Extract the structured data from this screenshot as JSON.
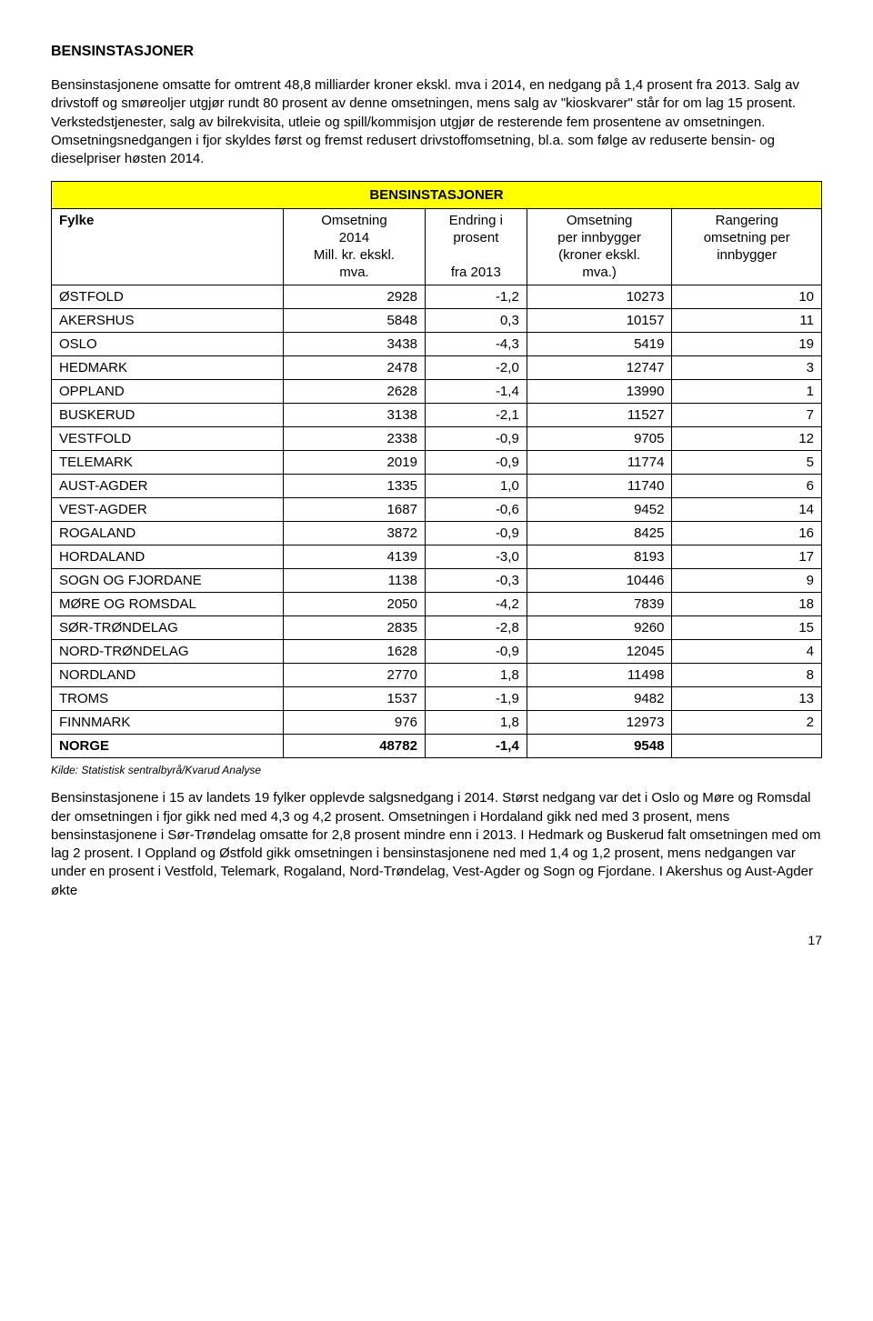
{
  "heading": "BENSINSTASJONER",
  "intro_para": "Bensinstasjonene omsatte for omtrent 48,8 milliarder kroner ekskl. mva i 2014, en nedgang på 1,4 prosent fra 2013. Salg av drivstoff og smøreoljer utgjør rundt 80 prosent av denne omsetningen, mens salg av \"kioskvarer\" står for om lag 15 prosent. Verkstedstjenester, salg av bilrekvisita, utleie og spill/kommisjon utgjør de resterende fem prosentene av omsetningen. Omsetningsnedgangen i fjor skyldes først og fremst redusert drivstoffomsetning, bl.a. som følge av reduserte bensin- og dieselpriser høsten 2014.",
  "table": {
    "title": "BENSINSTASJONER",
    "title_bg": "#ffff00",
    "border_color": "#000000",
    "columns": [
      {
        "key": "fylke",
        "label": "Fylke",
        "align": "left"
      },
      {
        "key": "oms",
        "label": "Omsetning\n2014\nMill. kr. ekskl.\nmva.",
        "align": "center"
      },
      {
        "key": "endring",
        "label": "Endring i\nprosent\n\nfra 2013",
        "align": "center"
      },
      {
        "key": "per_innb",
        "label": "Omsetning\nper innbygger\n(kroner ekskl.\nmva.)",
        "align": "center"
      },
      {
        "key": "rang",
        "label": "Rangering\nomsetning per\ninnbygger",
        "align": "center"
      }
    ],
    "rows": [
      {
        "fylke": "ØSTFOLD",
        "oms": "2928",
        "endring": "-1,2",
        "per_innb": "10273",
        "rang": "10"
      },
      {
        "fylke": "AKERSHUS",
        "oms": "5848",
        "endring": "0,3",
        "per_innb": "10157",
        "rang": "11"
      },
      {
        "fylke": "OSLO",
        "oms": "3438",
        "endring": "-4,3",
        "per_innb": "5419",
        "rang": "19"
      },
      {
        "fylke": "HEDMARK",
        "oms": "2478",
        "endring": "-2,0",
        "per_innb": "12747",
        "rang": "3"
      },
      {
        "fylke": "OPPLAND",
        "oms": "2628",
        "endring": "-1,4",
        "per_innb": "13990",
        "rang": "1"
      },
      {
        "fylke": "BUSKERUD",
        "oms": "3138",
        "endring": "-2,1",
        "per_innb": "11527",
        "rang": "7"
      },
      {
        "fylke": "VESTFOLD",
        "oms": "2338",
        "endring": "-0,9",
        "per_innb": "9705",
        "rang": "12"
      },
      {
        "fylke": "TELEMARK",
        "oms": "2019",
        "endring": "-0,9",
        "per_innb": "11774",
        "rang": "5"
      },
      {
        "fylke": "AUST-AGDER",
        "oms": "1335",
        "endring": "1,0",
        "per_innb": "11740",
        "rang": "6"
      },
      {
        "fylke": "VEST-AGDER",
        "oms": "1687",
        "endring": "-0,6",
        "per_innb": "9452",
        "rang": "14"
      },
      {
        "fylke": "ROGALAND",
        "oms": "3872",
        "endring": "-0,9",
        "per_innb": "8425",
        "rang": "16"
      },
      {
        "fylke": "HORDALAND",
        "oms": "4139",
        "endring": "-3,0",
        "per_innb": "8193",
        "rang": "17"
      },
      {
        "fylke": "SOGN OG FJORDANE",
        "oms": "1138",
        "endring": "-0,3",
        "per_innb": "10446",
        "rang": "9"
      },
      {
        "fylke": "MØRE OG ROMSDAL",
        "oms": "2050",
        "endring": "-4,2",
        "per_innb": "7839",
        "rang": "18"
      },
      {
        "fylke": "SØR-TRØNDELAG",
        "oms": "2835",
        "endring": "-2,8",
        "per_innb": "9260",
        "rang": "15"
      },
      {
        "fylke": "NORD-TRØNDELAG",
        "oms": "1628",
        "endring": "-0,9",
        "per_innb": "12045",
        "rang": "4"
      },
      {
        "fylke": "NORDLAND",
        "oms": "2770",
        "endring": "1,8",
        "per_innb": "11498",
        "rang": "8"
      },
      {
        "fylke": "TROMS",
        "oms": "1537",
        "endring": "-1,9",
        "per_innb": "9482",
        "rang": "13"
      },
      {
        "fylke": "FINNMARK",
        "oms": "976",
        "endring": "1,8",
        "per_innb": "12973",
        "rang": "2"
      }
    ],
    "total_row": {
      "fylke": "NORGE",
      "oms": "48782",
      "endring": "-1,4",
      "per_innb": "9548",
      "rang": ""
    }
  },
  "source_line": "Kilde: Statistisk sentralbyrå/Kvarud Analyse",
  "outro_para": "Bensinstasjonene i 15 av landets 19 fylker opplevde salgsnedgang i 2014. Størst nedgang var det i Oslo og Møre og Romsdal der omsetningen i fjor gikk ned med 4,3 og 4,2 prosent. Omsetningen i Hordaland gikk ned med 3 prosent, mens bensinstasjonene i Sør-Trøndelag omsatte for 2,8 prosent mindre enn i 2013. I Hedmark og Buskerud falt omsetningen med om lag 2 prosent. I Oppland og Østfold gikk omsetningen i bensinstasjonene ned med 1,4 og 1,2 prosent, mens nedgangen var under en prosent i Vestfold, Telemark, Rogaland, Nord-Trøndelag, Vest-Agder og Sogn og Fjordane. I Akershus og Aust-Agder økte",
  "page_number": "17"
}
